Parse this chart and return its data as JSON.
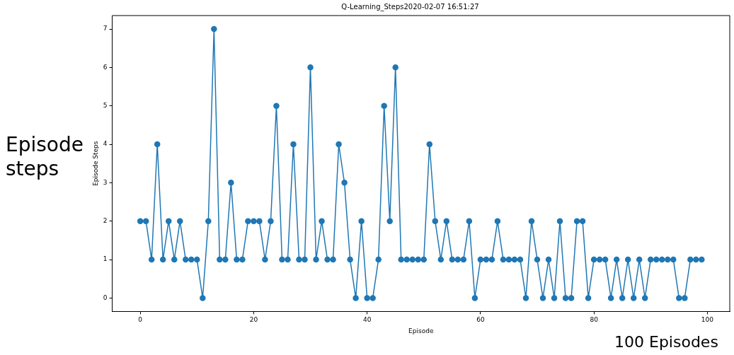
{
  "chart_data": {
    "type": "line",
    "title": "Q-Learning_Steps2020-02-07 16:51:27",
    "xlabel": "Episode",
    "ylabel": "Episode Steps",
    "annotations": [
      "Episode steps",
      "100 Episodes"
    ],
    "x": [
      0,
      1,
      2,
      3,
      4,
      5,
      6,
      7,
      8,
      9,
      10,
      11,
      12,
      13,
      14,
      15,
      16,
      17,
      18,
      19,
      20,
      21,
      22,
      23,
      24,
      25,
      26,
      27,
      28,
      29,
      30,
      31,
      32,
      33,
      34,
      35,
      36,
      37,
      38,
      39,
      40,
      41,
      42,
      43,
      44,
      45,
      46,
      47,
      48,
      49,
      50,
      51,
      52,
      53,
      54,
      55,
      56,
      57,
      58,
      59,
      60,
      61,
      62,
      63,
      64,
      65,
      66,
      67,
      68,
      69,
      70,
      71,
      72,
      73,
      74,
      75,
      76,
      77,
      78,
      79,
      80,
      81,
      82,
      83,
      84,
      85,
      86,
      87,
      88,
      89,
      90,
      91,
      92,
      93,
      94,
      95,
      96,
      97,
      98,
      99
    ],
    "series": [
      {
        "color": "#1f77b4",
        "values": [
          2,
          2,
          1,
          4,
          1,
          2,
          1,
          2,
          1,
          1,
          1,
          0,
          2,
          7,
          1,
          1,
          3,
          1,
          1,
          2,
          2,
          2,
          1,
          2,
          5,
          1,
          1,
          4,
          1,
          1,
          6,
          1,
          2,
          1,
          1,
          4,
          3,
          1,
          0,
          2,
          0,
          0,
          1,
          5,
          2,
          6,
          1,
          1,
          1,
          1,
          1,
          4,
          2,
          1,
          2,
          1,
          1,
          1,
          2,
          0,
          1,
          1,
          1,
          2,
          1,
          1,
          1,
          1,
          0,
          2,
          1,
          0,
          1,
          0,
          2,
          0,
          0,
          2,
          2,
          0,
          1,
          1,
          1,
          0,
          1,
          0,
          1,
          0,
          1,
          0,
          1,
          1,
          1,
          1,
          1,
          0,
          0,
          1,
          1,
          1
        ]
      }
    ],
    "xlim": [
      -4.95,
      103.95
    ],
    "xticks": [
      0,
      20,
      40,
      60,
      80,
      100
    ],
    "ylim": [
      -0.35,
      7.35
    ],
    "yticks": [
      0,
      1,
      2,
      3,
      4,
      5,
      6,
      7
    ],
    "grid": false,
    "legend": false,
    "marker": "circle",
    "line_style": "solid"
  }
}
